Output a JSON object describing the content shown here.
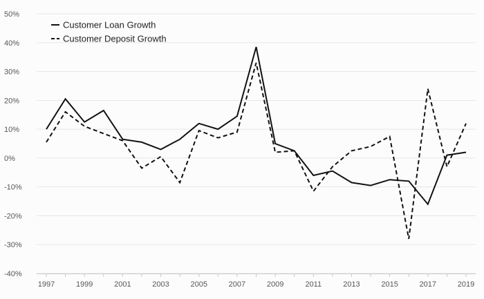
{
  "chart_data": {
    "type": "line",
    "title": "",
    "xlabel": "",
    "ylabel": "",
    "x": [
      1997,
      1998,
      1999,
      2000,
      2001,
      2002,
      2003,
      2004,
      2005,
      2006,
      2007,
      2008,
      2009,
      2010,
      2011,
      2012,
      2013,
      2014,
      2015,
      2016,
      2017,
      2018,
      2019
    ],
    "xlim": [
      1997,
      2019
    ],
    "x_tick_values": [
      1997,
      1999,
      2001,
      2003,
      2005,
      2007,
      2009,
      2011,
      2013,
      2015,
      2017,
      2019
    ],
    "x_tick_labels": [
      "1997",
      "1999",
      "2001",
      "2003",
      "2005",
      "2007",
      "2009",
      "2011",
      "2013",
      "2015",
      "2017",
      "2019"
    ],
    "ylim": [
      -40,
      50
    ],
    "y_tick_values": [
      50,
      40,
      30,
      20,
      10,
      0,
      -10,
      -20,
      -30,
      -40
    ],
    "y_tick_labels": [
      "50%",
      "40%",
      "30%",
      "20%",
      "10%",
      "0%",
      "-10%",
      "-20%",
      "-30%",
      "-40%"
    ],
    "grid": "horizontal",
    "legend_position": "top-left",
    "series": [
      {
        "name": "Customer Loan Growth",
        "style": "solid",
        "color": "#111111",
        "values": [
          10,
          20.5,
          12.5,
          16.5,
          6.5,
          5.5,
          3,
          6.5,
          12,
          10,
          14.5,
          38.5,
          5,
          2.5,
          -6,
          -4.5,
          -8.5,
          -9.5,
          -7.5,
          -8,
          -16,
          1,
          2
        ]
      },
      {
        "name": "Customer Deposit Growth",
        "style": "dashed",
        "color": "#111111",
        "values": [
          5.5,
          16,
          11,
          8.5,
          6,
          -3.5,
          0.5,
          -8.5,
          9.5,
          7,
          9,
          33,
          2,
          2.5,
          -11.5,
          -3,
          2.5,
          4,
          7.5,
          -28,
          24,
          -3,
          12
        ]
      }
    ]
  }
}
